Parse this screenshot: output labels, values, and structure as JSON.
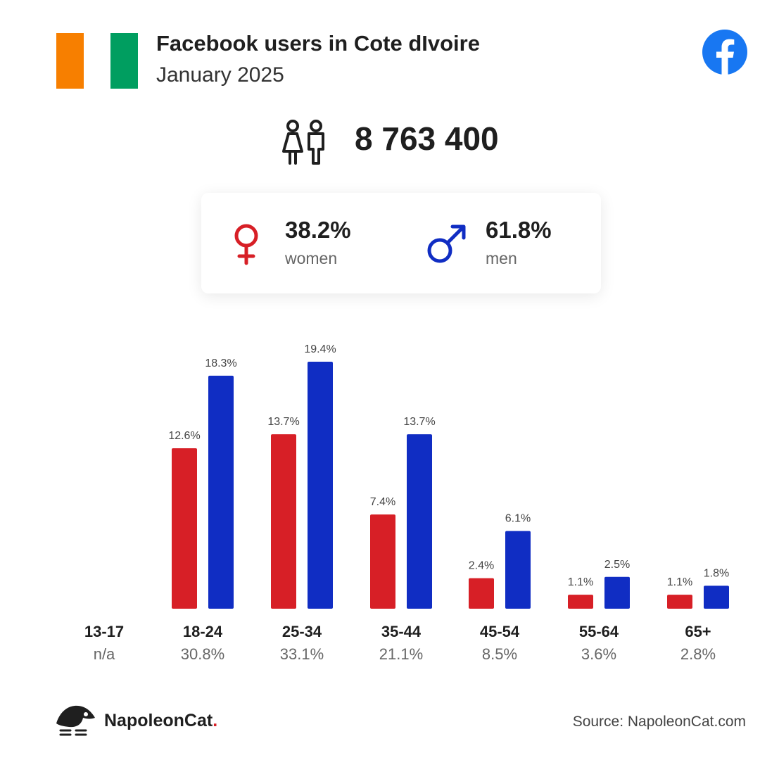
{
  "header": {
    "title": "Facebook users in Cote dIvoire",
    "subtitle": "January 2025",
    "flag_colors": [
      "#f77f00",
      "#ffffff",
      "#009e60"
    ]
  },
  "total": {
    "icon": "people-icon",
    "value": "8 763 400"
  },
  "gender": {
    "women": {
      "percent": "38.2%",
      "label": "women",
      "icon": "female-icon",
      "color": "#d71f26"
    },
    "men": {
      "percent": "61.8%",
      "label": "men",
      "icon": "male-icon",
      "color": "#102dc3"
    }
  },
  "chart_data": {
    "type": "bar",
    "categories": [
      "13-17",
      "18-24",
      "25-34",
      "35-44",
      "45-54",
      "55-64",
      "65+"
    ],
    "category_shares": [
      "n/a",
      "30.8%",
      "33.1%",
      "21.1%",
      "8.5%",
      "3.6%",
      "2.8%"
    ],
    "series": [
      {
        "name": "women",
        "color": "#d71f26",
        "values": [
          null,
          12.6,
          13.7,
          7.4,
          2.4,
          1.1,
          1.1
        ],
        "labels": [
          "",
          "12.6%",
          "13.7%",
          "7.4%",
          "2.4%",
          "1.1%",
          "1.1%"
        ]
      },
      {
        "name": "men",
        "color": "#102dc3",
        "values": [
          null,
          18.3,
          19.4,
          13.7,
          6.1,
          2.5,
          1.8
        ],
        "labels": [
          "",
          "18.3%",
          "19.4%",
          "13.7%",
          "6.1%",
          "2.5%",
          "1.8%"
        ]
      }
    ],
    "title": "",
    "xlabel": "",
    "ylabel": "",
    "ylim": [
      0,
      19.4
    ],
    "grid": false
  },
  "footer": {
    "brand_name": "NapoleonCat",
    "brand_dot": ".",
    "source": "Source: NapoleonCat.com",
    "icons": [
      "facebook-logo-icon",
      "napoleoncat-logo-icon"
    ]
  }
}
